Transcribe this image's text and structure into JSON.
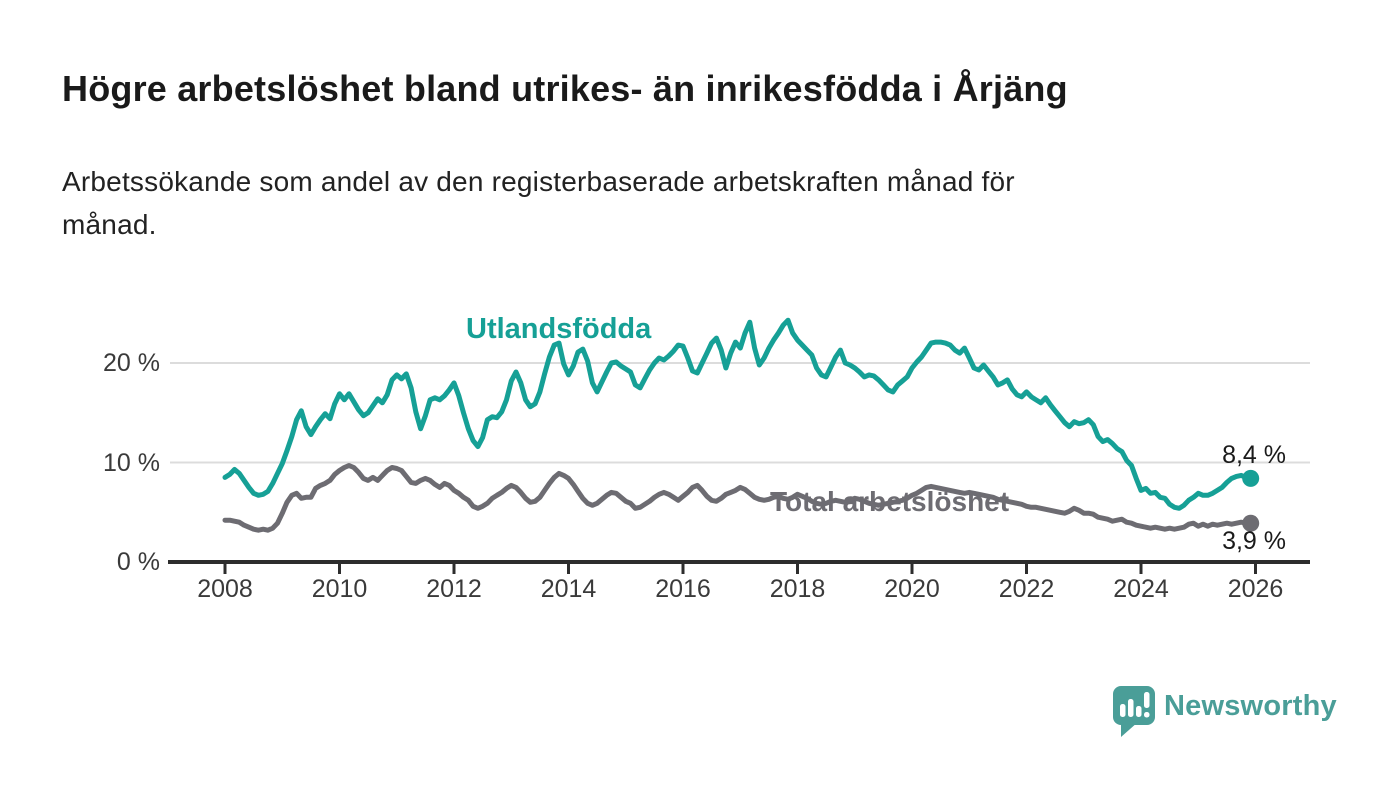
{
  "chart_data": {
    "type": "line",
    "title": "Högre arbetslöshet bland utrikes- än inrikesfödda i Årjäng",
    "subtitle": "Arbetssökande som andel av den registerbaserade arbetskraften månad för månad.",
    "subtitle_lines": [
      "Arbetssökande som andel av den registerbaserade arbetskraften månad för",
      "månad."
    ],
    "unit": "%",
    "frequency": "monthly",
    "x_start": "2008-01",
    "x_end": "2025-12",
    "xlabel": "",
    "ylabel": "",
    "ylim": [
      0,
      25
    ],
    "grid": "horizontal",
    "x_ticks": [
      2008,
      2010,
      2012,
      2014,
      2016,
      2018,
      2020,
      2022,
      2024,
      2026
    ],
    "x_tick_labels": [
      "2008",
      "2010",
      "2012",
      "2014",
      "2016",
      "2018",
      "2020",
      "2022",
      "2024",
      "2026"
    ],
    "y_ticks": [
      0,
      10,
      20
    ],
    "y_tick_labels": [
      "0 %",
      "10 %",
      "20 %"
    ],
    "series": [
      {
        "name": "Utlandsfödda",
        "color": "#16a096",
        "end_label": "8,4 %",
        "end_value": 8.4,
        "values": [
          8.5,
          8.8,
          9.3,
          8.9,
          8.2,
          7.5,
          6.9,
          6.7,
          6.8,
          7.1,
          7.9,
          8.9,
          9.9,
          11.2,
          12.6,
          14.3,
          15.2,
          13.6,
          12.8,
          13.6,
          14.3,
          14.9,
          14.4,
          15.9,
          16.9,
          16.3,
          16.9,
          16.1,
          15.3,
          14.7,
          15.0,
          15.7,
          16.4,
          16.0,
          16.8,
          18.3,
          18.8,
          18.4,
          18.9,
          17.5,
          15.1,
          13.4,
          14.7,
          16.3,
          16.5,
          16.3,
          16.7,
          17.3,
          18.0,
          16.7,
          15.0,
          13.4,
          12.2,
          11.6,
          12.5,
          14.3,
          14.6,
          14.5,
          15.1,
          16.3,
          18.2,
          19.1,
          18.0,
          16.3,
          15.6,
          15.9,
          17.1,
          18.9,
          20.6,
          21.8,
          22.0,
          19.9,
          18.8,
          19.7,
          21.1,
          21.4,
          20.2,
          18.0,
          17.1,
          18.1,
          19.1,
          20.0,
          20.1,
          19.7,
          19.4,
          19.1,
          17.8,
          17.5,
          18.4,
          19.3,
          20.0,
          20.5,
          20.3,
          20.7,
          21.2,
          21.8,
          21.7,
          20.5,
          19.2,
          19.0,
          20.0,
          21.0,
          22.0,
          22.5,
          21.3,
          19.5,
          21.0,
          22.1,
          21.5,
          23.0,
          24.1,
          21.5,
          19.8,
          20.5,
          21.5,
          22.3,
          23.0,
          23.8,
          24.3,
          23.0,
          22.3,
          21.8,
          21.3,
          20.8,
          19.5,
          18.8,
          18.6,
          19.6,
          20.6,
          21.3,
          20.0,
          19.8,
          19.5,
          19.1,
          18.6,
          18.8,
          18.7,
          18.3,
          17.8,
          17.3,
          17.1,
          17.8,
          18.2,
          18.6,
          19.5,
          20.1,
          20.6,
          21.3,
          22.0,
          22.1,
          22.1,
          22.0,
          21.8,
          21.3,
          21.0,
          21.5,
          20.5,
          19.5,
          19.3,
          19.8,
          19.2,
          18.6,
          17.8,
          18.0,
          18.3,
          17.4,
          16.8,
          16.6,
          17.1,
          16.6,
          16.3,
          16.0,
          16.5,
          15.8,
          15.2,
          14.6,
          14.0,
          13.6,
          14.1,
          13.9,
          14.0,
          14.3,
          13.8,
          12.6,
          12.1,
          12.3,
          11.9,
          11.4,
          11.1,
          10.2,
          9.7,
          8.4,
          7.2,
          7.4,
          6.9,
          7.0,
          6.5,
          6.4,
          5.8,
          5.5,
          5.4,
          5.7,
          6.2,
          6.5,
          6.9,
          6.7,
          6.7,
          6.9,
          7.2,
          7.5,
          8.0,
          8.4,
          8.6,
          8.7,
          8.5,
          8.4
        ]
      },
      {
        "name": "Total arbetslöshet",
        "color": "#6d6c72",
        "end_label": "3,9 %",
        "end_value": 3.9,
        "values": [
          4.2,
          4.2,
          4.1,
          4.0,
          3.7,
          3.5,
          3.3,
          3.2,
          3.3,
          3.2,
          3.4,
          3.9,
          4.9,
          6.0,
          6.7,
          6.9,
          6.4,
          6.5,
          6.5,
          7.4,
          7.7,
          7.9,
          8.2,
          8.8,
          9.2,
          9.5,
          9.7,
          9.5,
          9.0,
          8.4,
          8.2,
          8.5,
          8.2,
          8.7,
          9.2,
          9.5,
          9.4,
          9.2,
          8.6,
          8.0,
          7.9,
          8.2,
          8.4,
          8.2,
          7.8,
          7.5,
          7.9,
          7.7,
          7.2,
          6.9,
          6.5,
          6.2,
          5.6,
          5.4,
          5.6,
          5.9,
          6.4,
          6.7,
          7.0,
          7.4,
          7.7,
          7.5,
          7.0,
          6.4,
          6.0,
          6.1,
          6.5,
          7.2,
          7.9,
          8.5,
          8.9,
          8.7,
          8.4,
          7.8,
          7.1,
          6.4,
          5.9,
          5.7,
          5.9,
          6.3,
          6.7,
          7.0,
          6.9,
          6.5,
          6.1,
          5.9,
          5.4,
          5.5,
          5.8,
          6.1,
          6.5,
          6.8,
          7.0,
          6.8,
          6.5,
          6.2,
          6.6,
          7.0,
          7.5,
          7.7,
          7.2,
          6.6,
          6.2,
          6.1,
          6.4,
          6.8,
          7.0,
          7.2,
          7.5,
          7.3,
          6.9,
          6.5,
          6.3,
          6.2,
          6.3,
          6.5,
          6.6,
          6.4,
          6.3,
          6.5,
          6.8,
          6.6,
          6.4,
          6.1,
          5.9,
          5.8,
          5.9,
          6.1,
          6.2,
          6.1,
          6.0,
          6.2,
          6.4,
          6.3,
          6.1,
          5.9,
          5.8,
          5.7,
          5.8,
          5.9,
          6.0,
          6.1,
          6.2,
          6.4,
          6.7,
          6.9,
          7.2,
          7.5,
          7.6,
          7.5,
          7.4,
          7.3,
          7.2,
          7.1,
          7.0,
          6.9,
          7.0,
          6.9,
          6.8,
          6.7,
          6.6,
          6.5,
          6.3,
          6.2,
          6.1,
          6.0,
          5.9,
          5.8,
          5.6,
          5.5,
          5.5,
          5.4,
          5.3,
          5.2,
          5.1,
          5.0,
          4.9,
          5.1,
          5.4,
          5.2,
          4.9,
          4.9,
          4.8,
          4.5,
          4.4,
          4.3,
          4.1,
          4.2,
          4.3,
          4.0,
          3.9,
          3.7,
          3.6,
          3.5,
          3.4,
          3.5,
          3.4,
          3.3,
          3.4,
          3.3,
          3.4,
          3.5,
          3.8,
          3.9,
          3.6,
          3.8,
          3.6,
          3.8,
          3.7,
          3.8,
          3.9,
          3.8,
          3.9,
          4.0,
          3.9,
          3.9
        ]
      }
    ],
    "legend_position": "inline-labels"
  },
  "footer": {
    "brand": "Newsworthy"
  },
  "colors": {
    "teal": "#16a096",
    "gray": "#6d6c72",
    "logo": "#4a9e98",
    "title_color": "#1a1a1a",
    "subtitle_color": "#222222",
    "axis_text": "#3a3a3a",
    "grid_line": "#dcdcdc",
    "axis_line": "#2d2d2d",
    "background": "#ffffff"
  }
}
